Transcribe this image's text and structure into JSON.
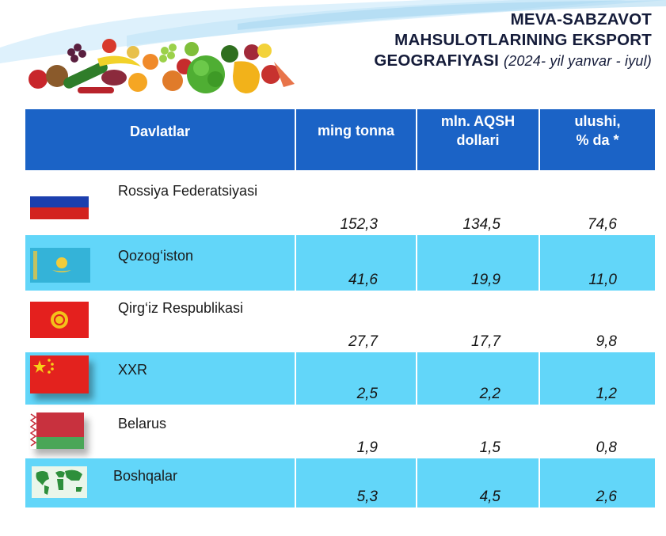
{
  "title": {
    "line1": "MEVA-SABZAVOT",
    "line2": "MAHSULOTLARINING EKSPORT",
    "line3": "GEOGRAFIYASI",
    "period": "(2024- yil yanvar - iyul)"
  },
  "colors": {
    "header_bg": "#1b63c6",
    "alt_row_bg": "#62d6f9",
    "title_text": "#151c3a"
  },
  "table": {
    "headers": {
      "country": "Davlatlar",
      "tonnes": "ming tonna",
      "usd_l1": "mln. AQSH",
      "usd_l2": "dollari",
      "share_l1": "ulushi,",
      "share_l2": "% da *"
    },
    "rows": [
      {
        "country": "Rossiya Federatsiyasi",
        "flag": "russia-flag",
        "tonnes": "152,3",
        "usd": "134,5",
        "share": "74,6"
      },
      {
        "country": "Qozog‘iston",
        "flag": "kazakhstan-flag",
        "tonnes": "41,6",
        "usd": "19,9",
        "share": "11,0"
      },
      {
        "country": "Qirg‘iz Respublikasi",
        "flag": "kyrgyzstan-flag",
        "tonnes": "27,7",
        "usd": "17,7",
        "share": "9,8"
      },
      {
        "country": "XXR",
        "flag": "china-flag",
        "tonnes": "2,5",
        "usd": "2,2",
        "share": "1,2"
      },
      {
        "country": "Belarus",
        "flag": "belarus-flag",
        "tonnes": "1,9",
        "usd": "1,5",
        "share": "0,8"
      },
      {
        "country": "Boshqalar",
        "flag": "world-map-icon",
        "tonnes": "5,3",
        "usd": "4,5",
        "share": "2,6"
      }
    ]
  }
}
